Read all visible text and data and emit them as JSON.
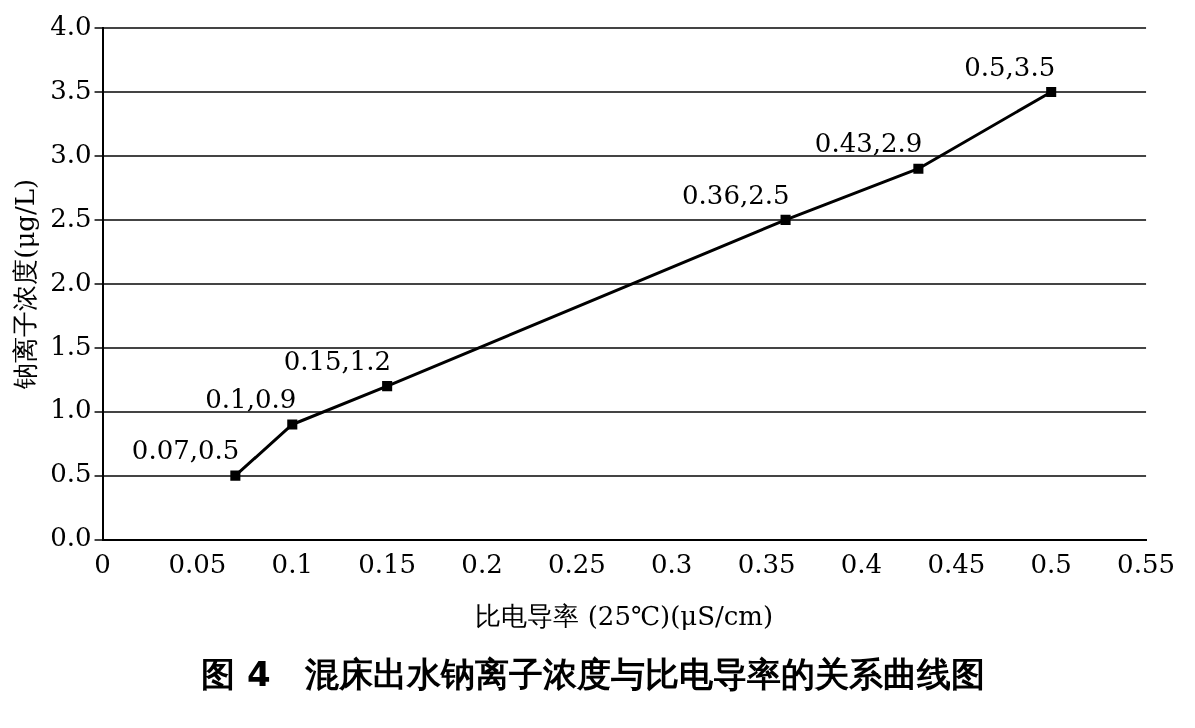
{
  "chart_data": {
    "type": "line",
    "title": "图 4　混床出水钠离子浓度与比电导率的关系曲线图",
    "xlabel": "比电导率 (25℃)(μS/cm)",
    "ylabel": "钠离子浓度(μg/L)",
    "x": [
      0.07,
      0.1,
      0.15,
      0.36,
      0.43,
      0.5
    ],
    "series": [
      {
        "color": "#000000",
        "values": [
          0.5,
          0.9,
          1.2,
          2.5,
          2.9,
          3.5
        ],
        "value_labels": [
          "0.07,0.5",
          "0.1,0.9",
          "0.15,1.2",
          "0.36,2.5",
          "0.43,2.9",
          "0.5,3.5"
        ]
      }
    ],
    "xlim": [
      0,
      0.55
    ],
    "xticks": [
      0,
      0.05,
      0.1,
      0.15,
      0.2,
      0.25,
      0.3,
      0.35,
      0.4,
      0.45,
      0.5,
      0.55
    ],
    "ylim": [
      0,
      4
    ],
    "yticks": [
      {
        "value": 0,
        "label": "0.0"
      },
      0.5,
      {
        "value": 1,
        "label": "1.0"
      },
      1.5,
      {
        "value": 2,
        "label": "2.0"
      },
      2.5,
      {
        "value": 3,
        "label": "3.0"
      },
      3.5,
      {
        "value": 4,
        "label": "4.0"
      }
    ],
    "grid": "y",
    "legend": false,
    "marker": "square",
    "line_style": "solid"
  }
}
